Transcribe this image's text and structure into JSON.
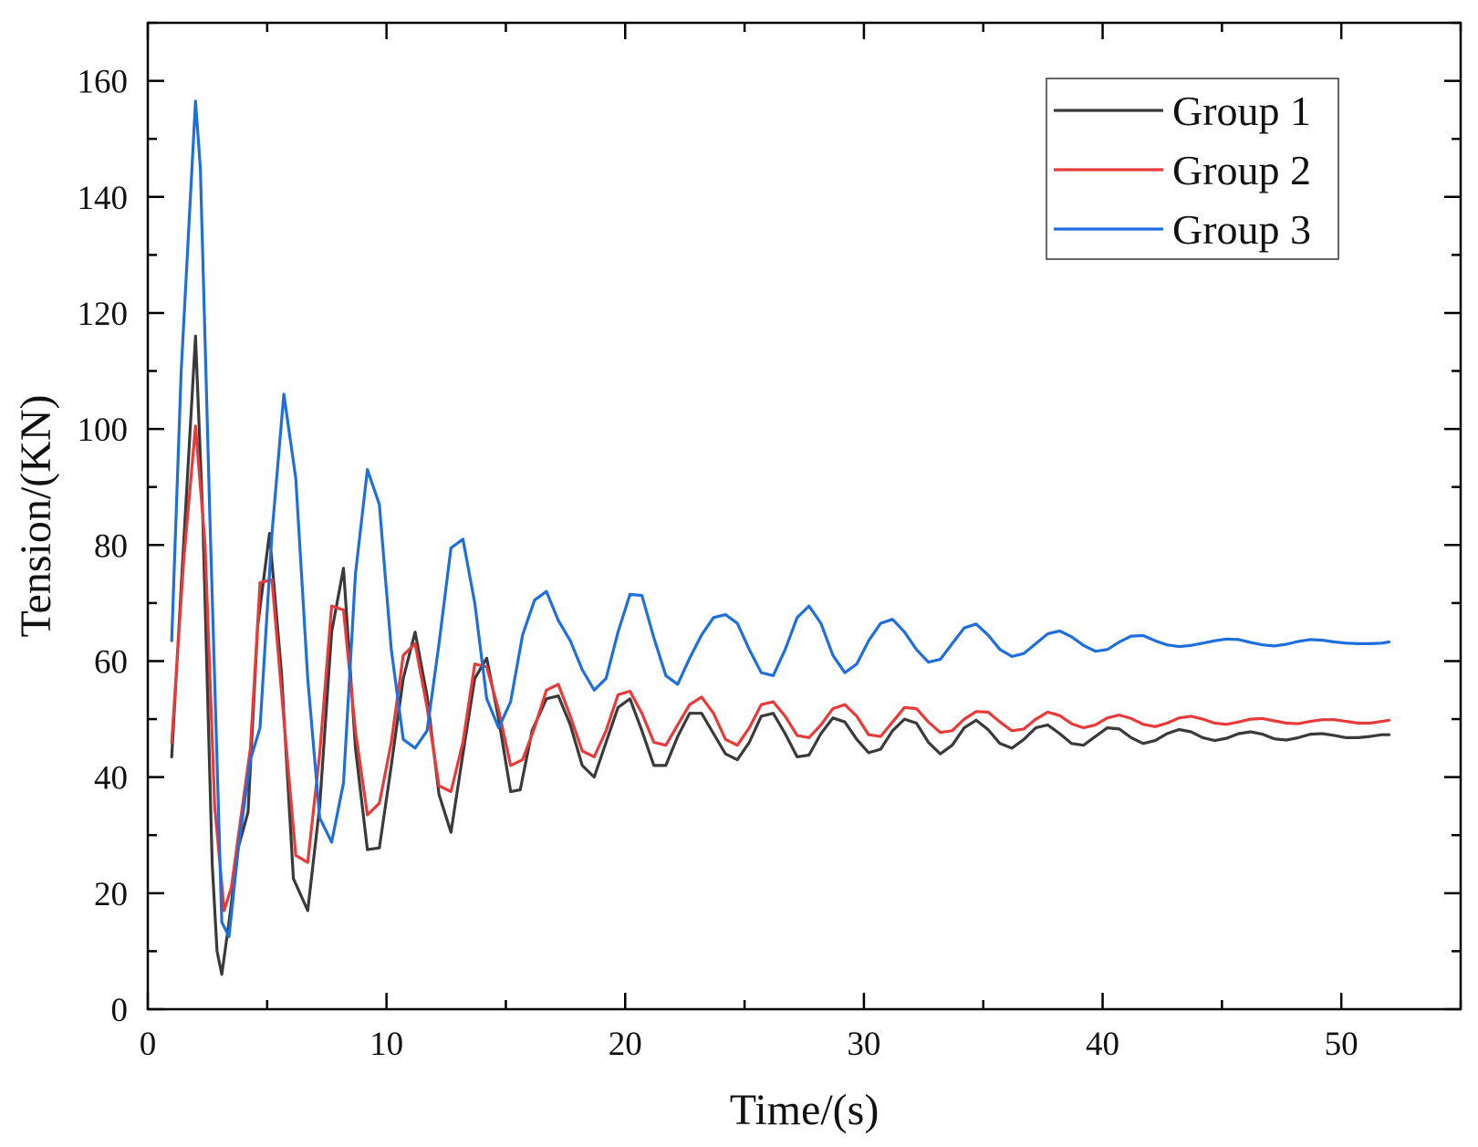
{
  "chart_data": {
    "type": "line",
    "title": "",
    "xlabel": "Time/(s)",
    "ylabel": "Tension/(KN)",
    "xlim": [
      0,
      55
    ],
    "ylim": [
      0,
      170
    ],
    "xticks": [
      0,
      10,
      20,
      30,
      40,
      50
    ],
    "yticks": [
      0,
      20,
      40,
      60,
      80,
      100,
      120,
      140,
      160
    ],
    "x_minor_step": 5,
    "y_minor_step": 10,
    "grid": false,
    "legend_position": "top-right",
    "series": [
      {
        "name": "Group 1",
        "color": "#3a3a3a",
        "points": [
          [
            1.0,
            43.5
          ],
          [
            1.5,
            80
          ],
          [
            2.0,
            116
          ],
          [
            2.3,
            85
          ],
          [
            2.7,
            25
          ],
          [
            2.9,
            10
          ],
          [
            3.1,
            6
          ],
          [
            3.4,
            15
          ],
          [
            3.8,
            28
          ],
          [
            4.2,
            34
          ],
          [
            4.6,
            66
          ],
          [
            5.1,
            82
          ],
          [
            5.6,
            58
          ],
          [
            6.1,
            22.5
          ],
          [
            6.7,
            17
          ],
          [
            7.2,
            35
          ],
          [
            7.7,
            65
          ],
          [
            8.2,
            76
          ],
          [
            8.7,
            45
          ],
          [
            9.2,
            27.5
          ],
          [
            9.7,
            27.8
          ],
          [
            10.2,
            42
          ],
          [
            10.7,
            57
          ],
          [
            11.2,
            65
          ],
          [
            11.7,
            54
          ],
          [
            12.2,
            37
          ],
          [
            12.7,
            30.5
          ],
          [
            13.2,
            44
          ],
          [
            13.7,
            57
          ],
          [
            14.2,
            60.5
          ],
          [
            14.7,
            50
          ],
          [
            15.2,
            37.5
          ],
          [
            15.6,
            37.8
          ],
          [
            16.1,
            48
          ],
          [
            16.7,
            53.5
          ],
          [
            17.2,
            54
          ],
          [
            17.7,
            49
          ],
          [
            18.2,
            42
          ],
          [
            18.7,
            40
          ],
          [
            19.2,
            46
          ],
          [
            19.7,
            52
          ],
          [
            20.2,
            53.5
          ],
          [
            20.7,
            48
          ],
          [
            21.2,
            42
          ],
          [
            21.7,
            42
          ],
          [
            22.2,
            47
          ],
          [
            22.7,
            51
          ],
          [
            23.2,
            51
          ],
          [
            23.7,
            47.5
          ],
          [
            24.2,
            44
          ],
          [
            24.7,
            43
          ],
          [
            25.2,
            46
          ],
          [
            25.7,
            50.5
          ],
          [
            26.2,
            51
          ],
          [
            26.7,
            47.5
          ],
          [
            27.2,
            43.5
          ],
          [
            27.7,
            43.8
          ],
          [
            28.2,
            47.5
          ],
          [
            28.7,
            50.2
          ],
          [
            29.2,
            49.5
          ],
          [
            29.7,
            46.5
          ],
          [
            30.2,
            44.2
          ],
          [
            30.7,
            44.8
          ],
          [
            31.2,
            48
          ],
          [
            31.7,
            50
          ],
          [
            32.2,
            49.3
          ],
          [
            32.7,
            46
          ],
          [
            33.2,
            44
          ],
          [
            33.7,
            45.5
          ],
          [
            34.2,
            48.5
          ],
          [
            34.7,
            49.8
          ],
          [
            35.2,
            48.2
          ],
          [
            35.7,
            45.8
          ],
          [
            36.2,
            45
          ],
          [
            36.7,
            46.5
          ],
          [
            37.2,
            48.5
          ],
          [
            37.7,
            49
          ],
          [
            38.2,
            47.5
          ],
          [
            38.7,
            45.8
          ],
          [
            39.2,
            45.5
          ],
          [
            39.7,
            47
          ],
          [
            40.2,
            48.5
          ],
          [
            40.7,
            48.3
          ],
          [
            41.2,
            46.8
          ],
          [
            41.7,
            45.8
          ],
          [
            42.2,
            46.3
          ],
          [
            42.7,
            47.5
          ],
          [
            43.2,
            48.2
          ],
          [
            43.7,
            47.8
          ],
          [
            44.2,
            46.8
          ],
          [
            44.7,
            46.3
          ],
          [
            45.2,
            46.7
          ],
          [
            45.7,
            47.5
          ],
          [
            46.2,
            47.8
          ],
          [
            46.7,
            47.4
          ],
          [
            47.2,
            46.6
          ],
          [
            47.7,
            46.4
          ],
          [
            48.2,
            46.8
          ],
          [
            48.7,
            47.4
          ],
          [
            49.2,
            47.5
          ],
          [
            49.7,
            47.2
          ],
          [
            50.2,
            46.8
          ],
          [
            50.7,
            46.8
          ],
          [
            51.2,
            47
          ],
          [
            51.7,
            47.3
          ],
          [
            52.0,
            47.3
          ]
        ]
      },
      {
        "name": "Group 2",
        "color": "#e83a3a",
        "points": [
          [
            1.0,
            46
          ],
          [
            1.5,
            77
          ],
          [
            2.0,
            100.5
          ],
          [
            2.4,
            80
          ],
          [
            2.8,
            35
          ],
          [
            3.2,
            17
          ],
          [
            3.5,
            21
          ],
          [
            3.9,
            33
          ],
          [
            4.3,
            45
          ],
          [
            4.7,
            73.5
          ],
          [
            5.2,
            74
          ],
          [
            5.7,
            50
          ],
          [
            6.2,
            26.5
          ],
          [
            6.7,
            25.3
          ],
          [
            7.2,
            44
          ],
          [
            7.7,
            69.5
          ],
          [
            8.2,
            68.8
          ],
          [
            8.7,
            48
          ],
          [
            9.2,
            33.5
          ],
          [
            9.7,
            35.5
          ],
          [
            10.2,
            46
          ],
          [
            10.7,
            61
          ],
          [
            11.2,
            63
          ],
          [
            11.7,
            52
          ],
          [
            12.2,
            38.5
          ],
          [
            12.7,
            37.5
          ],
          [
            13.2,
            46
          ],
          [
            13.7,
            59.5
          ],
          [
            14.2,
            59
          ],
          [
            14.7,
            51.5
          ],
          [
            15.2,
            42
          ],
          [
            15.7,
            43
          ],
          [
            16.2,
            48.5
          ],
          [
            16.7,
            55
          ],
          [
            17.2,
            56
          ],
          [
            17.7,
            50.5
          ],
          [
            18.2,
            44.5
          ],
          [
            18.7,
            43.5
          ],
          [
            19.2,
            48
          ],
          [
            19.7,
            54.2
          ],
          [
            20.2,
            54.8
          ],
          [
            20.7,
            51
          ],
          [
            21.2,
            46
          ],
          [
            21.7,
            45.5
          ],
          [
            22.2,
            49
          ],
          [
            22.7,
            52.5
          ],
          [
            23.2,
            53.8
          ],
          [
            23.7,
            51
          ],
          [
            24.2,
            46.5
          ],
          [
            24.7,
            45.5
          ],
          [
            25.2,
            48.5
          ],
          [
            25.7,
            52.5
          ],
          [
            26.2,
            53
          ],
          [
            26.7,
            50.5
          ],
          [
            27.2,
            47.2
          ],
          [
            27.7,
            46.8
          ],
          [
            28.2,
            49
          ],
          [
            28.7,
            51.8
          ],
          [
            29.2,
            52.5
          ],
          [
            29.7,
            50.5
          ],
          [
            30.2,
            47.3
          ],
          [
            30.7,
            47
          ],
          [
            31.2,
            49.5
          ],
          [
            31.7,
            52
          ],
          [
            32.2,
            51.8
          ],
          [
            32.7,
            49.5
          ],
          [
            33.2,
            47.7
          ],
          [
            33.7,
            48
          ],
          [
            34.2,
            50
          ],
          [
            34.7,
            51.3
          ],
          [
            35.2,
            51.2
          ],
          [
            35.7,
            49.5
          ],
          [
            36.2,
            48
          ],
          [
            36.7,
            48.3
          ],
          [
            37.2,
            50
          ],
          [
            37.7,
            51.2
          ],
          [
            38.2,
            50.6
          ],
          [
            38.7,
            49.2
          ],
          [
            39.2,
            48.5
          ],
          [
            39.7,
            49
          ],
          [
            40.2,
            50.2
          ],
          [
            40.7,
            50.7
          ],
          [
            41.2,
            50.1
          ],
          [
            41.7,
            49.1
          ],
          [
            42.2,
            48.7
          ],
          [
            42.7,
            49.3
          ],
          [
            43.2,
            50.2
          ],
          [
            43.7,
            50.5
          ],
          [
            44.2,
            50
          ],
          [
            44.7,
            49.3
          ],
          [
            45.2,
            49.1
          ],
          [
            45.7,
            49.5
          ],
          [
            46.2,
            50
          ],
          [
            46.7,
            50.1
          ],
          [
            47.2,
            49.7
          ],
          [
            47.7,
            49.3
          ],
          [
            48.2,
            49.2
          ],
          [
            48.7,
            49.6
          ],
          [
            49.2,
            49.9
          ],
          [
            49.7,
            49.9
          ],
          [
            50.2,
            49.6
          ],
          [
            50.7,
            49.3
          ],
          [
            51.2,
            49.3
          ],
          [
            51.7,
            49.6
          ],
          [
            52.0,
            49.8
          ]
        ]
      },
      {
        "name": "Group 3",
        "color": "#1e6fdc",
        "points": [
          [
            1.0,
            63.5
          ],
          [
            1.4,
            110
          ],
          [
            2.0,
            156.5
          ],
          [
            2.2,
            145
          ],
          [
            2.6,
            85
          ],
          [
            3.1,
            15
          ],
          [
            3.4,
            12.5
          ],
          [
            3.8,
            28
          ],
          [
            4.3,
            43
          ],
          [
            4.7,
            48.5
          ],
          [
            5.2,
            82
          ],
          [
            5.7,
            106
          ],
          [
            6.2,
            91.5
          ],
          [
            6.7,
            57
          ],
          [
            7.2,
            33
          ],
          [
            7.7,
            28.8
          ],
          [
            8.2,
            39
          ],
          [
            8.7,
            75
          ],
          [
            9.2,
            93
          ],
          [
            9.7,
            87
          ],
          [
            10.2,
            62
          ],
          [
            10.7,
            46.5
          ],
          [
            11.2,
            45
          ],
          [
            11.7,
            48
          ],
          [
            12.2,
            63
          ],
          [
            12.7,
            79.5
          ],
          [
            13.2,
            81
          ],
          [
            13.7,
            70
          ],
          [
            14.2,
            53.5
          ],
          [
            14.7,
            48.5
          ],
          [
            15.2,
            53
          ],
          [
            15.7,
            64.5
          ],
          [
            16.2,
            70.5
          ],
          [
            16.7,
            72
          ],
          [
            17.2,
            67
          ],
          [
            17.7,
            63.5
          ],
          [
            18.2,
            58.5
          ],
          [
            18.7,
            55
          ],
          [
            19.2,
            57
          ],
          [
            19.7,
            65
          ],
          [
            20.2,
            71.5
          ],
          [
            20.7,
            71.3
          ],
          [
            21.2,
            64
          ],
          [
            21.7,
            57.5
          ],
          [
            22.2,
            56
          ],
          [
            22.7,
            60.5
          ],
          [
            23.2,
            64.5
          ],
          [
            23.7,
            67.5
          ],
          [
            24.2,
            68
          ],
          [
            24.7,
            66.5
          ],
          [
            25.2,
            62
          ],
          [
            25.7,
            58
          ],
          [
            26.2,
            57.5
          ],
          [
            26.7,
            62
          ],
          [
            27.2,
            67.5
          ],
          [
            27.7,
            69.5
          ],
          [
            28.2,
            66.5
          ],
          [
            28.7,
            61
          ],
          [
            29.2,
            58
          ],
          [
            29.7,
            59.5
          ],
          [
            30.2,
            63.5
          ],
          [
            30.7,
            66.5
          ],
          [
            31.2,
            67.2
          ],
          [
            31.7,
            65
          ],
          [
            32.2,
            62
          ],
          [
            32.7,
            59.8
          ],
          [
            33.2,
            60.3
          ],
          [
            33.7,
            63
          ],
          [
            34.2,
            65.7
          ],
          [
            34.7,
            66.4
          ],
          [
            35.2,
            64.5
          ],
          [
            35.7,
            62
          ],
          [
            36.2,
            60.8
          ],
          [
            36.7,
            61.3
          ],
          [
            37.2,
            63
          ],
          [
            37.7,
            64.7
          ],
          [
            38.2,
            65.2
          ],
          [
            38.7,
            64.2
          ],
          [
            39.2,
            62.7
          ],
          [
            39.7,
            61.7
          ],
          [
            40.2,
            62
          ],
          [
            40.7,
            63.3
          ],
          [
            41.2,
            64.3
          ],
          [
            41.7,
            64.4
          ],
          [
            42.2,
            63.5
          ],
          [
            42.7,
            62.8
          ],
          [
            43.2,
            62.5
          ],
          [
            43.7,
            62.7
          ],
          [
            44.2,
            63.1
          ],
          [
            44.7,
            63.5
          ],
          [
            45.2,
            63.8
          ],
          [
            45.7,
            63.7
          ],
          [
            46.2,
            63.2
          ],
          [
            46.7,
            62.8
          ],
          [
            47.2,
            62.6
          ],
          [
            47.7,
            62.9
          ],
          [
            48.2,
            63.4
          ],
          [
            48.7,
            63.7
          ],
          [
            49.2,
            63.6
          ],
          [
            49.7,
            63.3
          ],
          [
            50.2,
            63.1
          ],
          [
            50.7,
            63
          ],
          [
            51.2,
            63
          ],
          [
            51.7,
            63.1
          ],
          [
            52.0,
            63.3
          ]
        ]
      }
    ]
  }
}
